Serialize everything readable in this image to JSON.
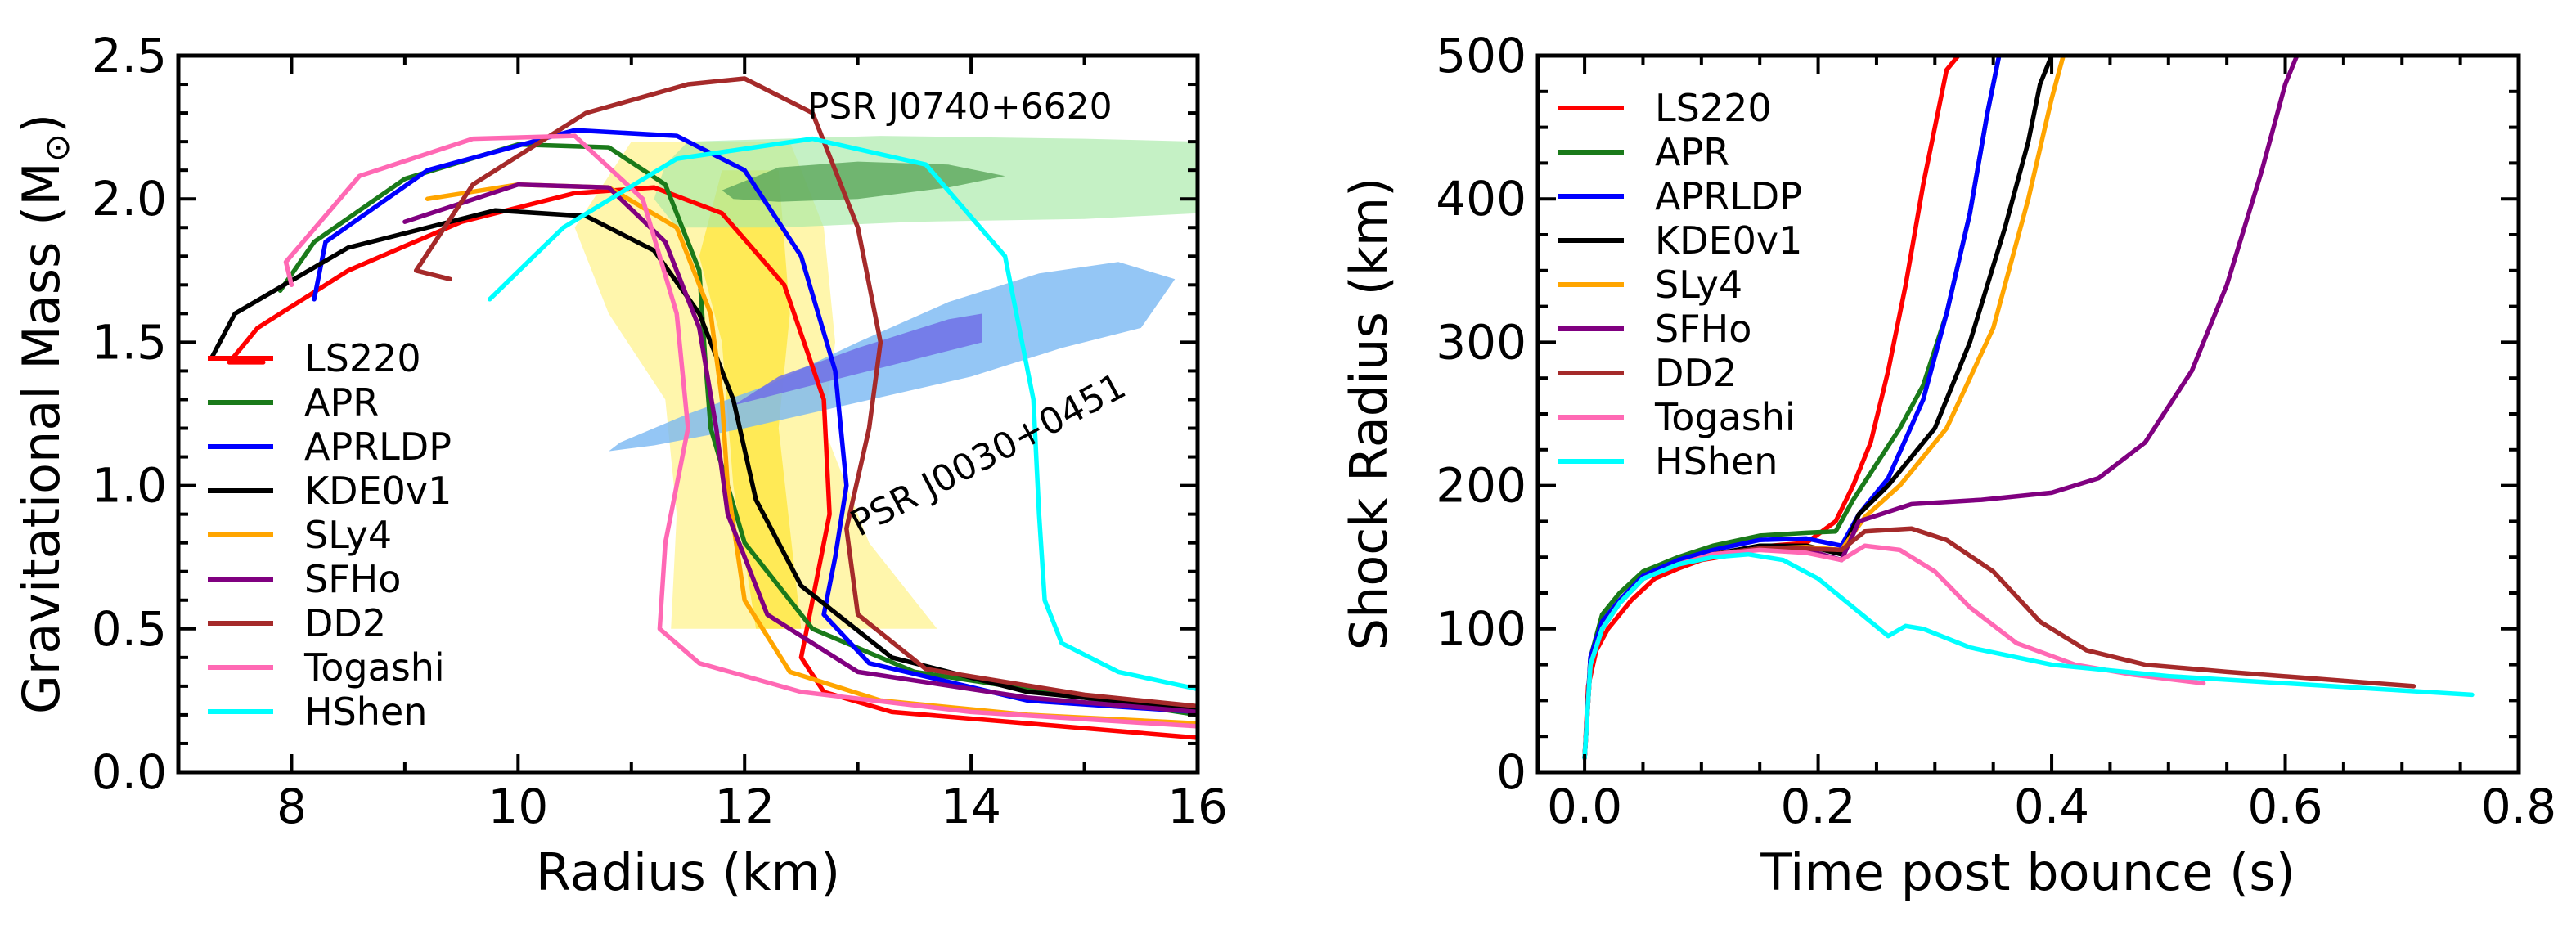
{
  "chart_data": [
    {
      "type": "line",
      "ylabel_main": "Gravitational Mass (M",
      "ylabel_sub": "⊙",
      "ylabel_close": ")",
      "xlabel": "Radius (km)",
      "xlim": [
        7,
        16
      ],
      "ylim": [
        0,
        2.5
      ],
      "xticks": [
        "8",
        "10",
        "12",
        "14",
        "16"
      ],
      "yticks": [
        "0.0",
        "0.5",
        "1.0",
        "1.5",
        "2.0",
        "2.5"
      ],
      "legend_position": "lower-left",
      "annotations": [
        {
          "text": "PSR J0740+6620",
          "x": 13.9,
          "y": 2.28,
          "angle": 0
        },
        {
          "text": "PSR J0030+0451",
          "x": 14.2,
          "y": 1.07,
          "angle": -28
        }
      ],
      "regions": [
        {
          "name": "yellow-band-outer",
          "color": "#fff59d",
          "opacity": 0.85,
          "points": [
            [
              11.0,
              2.2
            ],
            [
              12.4,
              2.2
            ],
            [
              12.7,
              1.9
            ],
            [
              12.8,
              1.5
            ],
            [
              12.7,
              1.2
            ],
            [
              13.1,
              0.8
            ],
            [
              13.7,
              0.5
            ],
            [
              11.35,
              0.5
            ],
            [
              11.4,
              0.9
            ],
            [
              11.3,
              1.3
            ],
            [
              10.8,
              1.6
            ],
            [
              10.5,
              1.9
            ]
          ]
        },
        {
          "name": "yellow-band-inner",
          "color": "#ffe94d",
          "opacity": 0.9,
          "points": [
            [
              11.8,
              2.1
            ],
            [
              12.3,
              2.1
            ],
            [
              12.4,
              1.6
            ],
            [
              12.3,
              1.2
            ],
            [
              12.5,
              0.5
            ],
            [
              12.1,
              0.5
            ],
            [
              11.9,
              1.0
            ],
            [
              11.8,
              1.5
            ],
            [
              11.6,
              1.8
            ]
          ]
        },
        {
          "name": "psr-j0740-outer",
          "color": "#a6e9a6",
          "opacity": 0.65,
          "points": [
            [
              11.5,
              2.2
            ],
            [
              13.2,
              2.22
            ],
            [
              15.0,
              2.21
            ],
            [
              16.0,
              2.2
            ],
            [
              16.0,
              1.95
            ],
            [
              15.0,
              1.93
            ],
            [
              13.5,
              1.92
            ],
            [
              12.3,
              1.9
            ],
            [
              11.4,
              1.9
            ],
            [
              11.2,
              2.0
            ],
            [
              11.3,
              2.12
            ]
          ]
        },
        {
          "name": "psr-j0740-inner",
          "color": "#5aa65a",
          "opacity": 0.8,
          "points": [
            [
              11.8,
              2.03
            ],
            [
              12.3,
              2.11
            ],
            [
              13.0,
              2.13
            ],
            [
              13.8,
              2.12
            ],
            [
              14.3,
              2.08
            ],
            [
              13.8,
              2.04
            ],
            [
              13.0,
              2.0
            ],
            [
              12.3,
              1.99
            ],
            [
              11.9,
              2.0
            ]
          ]
        },
        {
          "name": "psr-j0030-outer",
          "color": "#79b8f3",
          "opacity": 0.8,
          "points": [
            [
              10.8,
              1.12
            ],
            [
              11.2,
              1.14
            ],
            [
              12.0,
              1.2
            ],
            [
              13.0,
              1.29
            ],
            [
              14.0,
              1.38
            ],
            [
              14.8,
              1.48
            ],
            [
              15.5,
              1.55
            ],
            [
              15.8,
              1.72
            ],
            [
              15.3,
              1.78
            ],
            [
              14.6,
              1.74
            ],
            [
              13.8,
              1.64
            ],
            [
              13.0,
              1.5
            ],
            [
              12.2,
              1.35
            ],
            [
              11.5,
              1.25
            ],
            [
              10.9,
              1.15
            ]
          ]
        },
        {
          "name": "psr-j0030-inner",
          "color": "#7070e6",
          "opacity": 0.85,
          "points": [
            [
              11.9,
              1.28
            ],
            [
              12.8,
              1.37
            ],
            [
              13.6,
              1.45
            ],
            [
              14.1,
              1.5
            ],
            [
              14.1,
              1.6
            ],
            [
              13.8,
              1.58
            ],
            [
              13.0,
              1.48
            ],
            [
              12.3,
              1.38
            ]
          ]
        }
      ],
      "series": [
        {
          "name": "LS220",
          "color": "#ff0000",
          "x": [
            7.75,
            7.45,
            7.7,
            8.5,
            9.5,
            10.5,
            11.2,
            11.8,
            12.35,
            12.7,
            12.75,
            12.6,
            12.5,
            12.7,
            13.3,
            14.5,
            16.0
          ],
          "y": [
            1.43,
            1.43,
            1.55,
            1.75,
            1.92,
            2.02,
            2.04,
            1.95,
            1.7,
            1.3,
            0.9,
            0.6,
            0.4,
            0.28,
            0.21,
            0.17,
            0.12
          ]
        },
        {
          "name": "APR",
          "color": "#1a7a1a",
          "x": [
            7.9,
            8.2,
            9.0,
            10.0,
            10.8,
            11.3,
            11.6,
            11.65,
            11.7,
            12.0,
            12.6,
            13.5,
            16.0
          ],
          "y": [
            1.68,
            1.85,
            2.07,
            2.19,
            2.18,
            2.05,
            1.75,
            1.45,
            1.2,
            0.8,
            0.5,
            0.35,
            0.2
          ]
        },
        {
          "name": "APRLDP",
          "color": "#0000ff",
          "x": [
            8.2,
            8.3,
            9.2,
            10.5,
            11.4,
            12.0,
            12.5,
            12.8,
            12.9,
            12.8,
            12.7,
            13.1,
            14.5,
            16.0
          ],
          "y": [
            1.65,
            1.85,
            2.1,
            2.24,
            2.22,
            2.1,
            1.8,
            1.4,
            1.0,
            0.75,
            0.55,
            0.38,
            0.25,
            0.21
          ]
        },
        {
          "name": "KDE0v1",
          "color": "#000000",
          "x": [
            7.3,
            7.5,
            8.5,
            9.8,
            10.6,
            11.2,
            11.6,
            11.9,
            12.1,
            12.5,
            13.3,
            14.5,
            16.0
          ],
          "y": [
            1.45,
            1.6,
            1.83,
            1.96,
            1.94,
            1.82,
            1.6,
            1.3,
            0.95,
            0.65,
            0.4,
            0.28,
            0.22
          ]
        },
        {
          "name": "SLy4",
          "color": "#ffa500",
          "x": [
            9.2,
            10.0,
            10.8,
            11.4,
            11.7,
            11.8,
            11.85,
            12.0,
            12.4,
            13.2,
            14.5,
            16.0
          ],
          "y": [
            2.0,
            2.05,
            2.04,
            1.9,
            1.6,
            1.3,
            1.0,
            0.6,
            0.35,
            0.25,
            0.2,
            0.17
          ]
        },
        {
          "name": "SFHo",
          "color": "#800080",
          "x": [
            9.0,
            10.0,
            10.8,
            11.3,
            11.6,
            11.75,
            11.85,
            12.2,
            13.0,
            14.5,
            16.0
          ],
          "y": [
            1.92,
            2.05,
            2.04,
            1.85,
            1.55,
            1.2,
            0.9,
            0.55,
            0.35,
            0.26,
            0.21
          ]
        },
        {
          "name": "DD2",
          "color": "#a52a2a",
          "x": [
            9.4,
            9.1,
            9.6,
            10.6,
            11.5,
            12.0,
            12.6,
            13.0,
            13.2,
            13.1,
            12.9,
            13.0,
            13.6,
            15.0,
            16.0
          ],
          "y": [
            1.72,
            1.75,
            2.05,
            2.3,
            2.4,
            2.42,
            2.3,
            1.9,
            1.5,
            1.2,
            0.85,
            0.55,
            0.36,
            0.27,
            0.23
          ]
        },
        {
          "name": "Togashi",
          "color": "#ff69b4",
          "x": [
            8.0,
            7.95,
            8.6,
            9.6,
            10.5,
            11.1,
            11.4,
            11.5,
            11.3,
            11.25,
            11.6,
            12.5,
            14.0,
            16.0
          ],
          "y": [
            1.7,
            1.78,
            2.08,
            2.21,
            2.22,
            2.0,
            1.6,
            1.2,
            0.8,
            0.5,
            0.38,
            0.28,
            0.21,
            0.16
          ]
        },
        {
          "name": "HShen",
          "color": "#00ffff",
          "x": [
            9.75,
            10.4,
            11.4,
            12.6,
            13.6,
            14.3,
            14.55,
            14.6,
            14.65,
            14.8,
            15.3,
            16.0
          ],
          "y": [
            1.65,
            1.9,
            2.14,
            2.21,
            2.12,
            1.8,
            1.3,
            0.9,
            0.6,
            0.45,
            0.35,
            0.29
          ]
        }
      ]
    },
    {
      "type": "line",
      "ylabel": "Shock Radius (km)",
      "xlabel": "Time post bounce (s)",
      "xlim": [
        -0.04,
        0.8
      ],
      "ylim": [
        0,
        500
      ],
      "xticks": [
        "0.0",
        "0.2",
        "0.4",
        "0.6",
        "0.8"
      ],
      "yticks": [
        "0",
        "100",
        "200",
        "300",
        "400",
        "500"
      ],
      "legend_position": "upper-left",
      "series": [
        {
          "name": "LS220",
          "color": "#ff0000",
          "x": [
            0,
            0.003,
            0.01,
            0.02,
            0.04,
            0.06,
            0.08,
            0.1,
            0.13,
            0.16,
            0.19,
            0.215,
            0.23,
            0.245,
            0.26,
            0.275,
            0.29,
            0.3,
            0.31,
            0.32
          ],
          "y": [
            10,
            60,
            85,
            100,
            120,
            135,
            142,
            148,
            152,
            158,
            160,
            175,
            200,
            230,
            280,
            340,
            410,
            450,
            490,
            500
          ]
        },
        {
          "name": "APR",
          "color": "#1a7a1a",
          "x": [
            0,
            0.005,
            0.015,
            0.03,
            0.05,
            0.08,
            0.11,
            0.15,
            0.19,
            0.215,
            0.23,
            0.25,
            0.27,
            0.29,
            0.31,
            0.33,
            0.345,
            0.355
          ],
          "y": [
            10,
            80,
            110,
            125,
            140,
            150,
            158,
            165,
            167,
            168,
            190,
            215,
            240,
            270,
            320,
            390,
            460,
            500
          ]
        },
        {
          "name": "APRLDP",
          "color": "#0000ff",
          "x": [
            0,
            0.005,
            0.015,
            0.03,
            0.05,
            0.08,
            0.11,
            0.15,
            0.19,
            0.22,
            0.235,
            0.26,
            0.29,
            0.31,
            0.33,
            0.345,
            0.355
          ],
          "y": [
            10,
            80,
            105,
            120,
            137,
            148,
            155,
            162,
            163,
            158,
            180,
            205,
            260,
            320,
            390,
            460,
            500
          ]
        },
        {
          "name": "KDE0v1",
          "color": "#000000",
          "x": [
            0,
            0.005,
            0.015,
            0.03,
            0.05,
            0.08,
            0.11,
            0.15,
            0.19,
            0.22,
            0.235,
            0.26,
            0.3,
            0.33,
            0.36,
            0.38,
            0.39,
            0.4
          ],
          "y": [
            10,
            75,
            100,
            118,
            135,
            145,
            152,
            158,
            158,
            152,
            180,
            200,
            240,
            300,
            380,
            440,
            480,
            500
          ]
        },
        {
          "name": "SLy4",
          "color": "#ffa500",
          "x": [
            0,
            0.005,
            0.015,
            0.03,
            0.05,
            0.08,
            0.11,
            0.15,
            0.19,
            0.22,
            0.24,
            0.27,
            0.31,
            0.35,
            0.38,
            0.4,
            0.41
          ],
          "y": [
            10,
            75,
            100,
            118,
            135,
            145,
            152,
            156,
            157,
            155,
            178,
            200,
            240,
            310,
            400,
            470,
            500
          ]
        },
        {
          "name": "SFHo",
          "color": "#800080",
          "x": [
            0,
            0.005,
            0.015,
            0.03,
            0.05,
            0.08,
            0.11,
            0.15,
            0.19,
            0.22,
            0.235,
            0.28,
            0.34,
            0.4,
            0.44,
            0.48,
            0.52,
            0.55,
            0.58,
            0.6,
            0.61
          ],
          "y": [
            10,
            75,
            100,
            118,
            135,
            145,
            152,
            156,
            155,
            148,
            175,
            187,
            190,
            195,
            205,
            230,
            280,
            340,
            420,
            480,
            500
          ]
        },
        {
          "name": "DD2",
          "color": "#a52a2a",
          "x": [
            0,
            0.005,
            0.015,
            0.03,
            0.05,
            0.08,
            0.11,
            0.15,
            0.19,
            0.22,
            0.24,
            0.28,
            0.31,
            0.35,
            0.39,
            0.43,
            0.48,
            0.55,
            0.63,
            0.71
          ],
          "y": [
            10,
            75,
            100,
            118,
            135,
            145,
            152,
            156,
            156,
            155,
            168,
            170,
            162,
            140,
            105,
            85,
            75,
            70,
            65,
            60
          ]
        },
        {
          "name": "Togashi",
          "color": "#ff69b4",
          "x": [
            0,
            0.005,
            0.015,
            0.03,
            0.05,
            0.08,
            0.11,
            0.15,
            0.19,
            0.22,
            0.24,
            0.27,
            0.3,
            0.33,
            0.37,
            0.42,
            0.47,
            0.53
          ],
          "y": [
            10,
            75,
            100,
            118,
            135,
            145,
            152,
            155,
            153,
            148,
            158,
            155,
            140,
            115,
            90,
            75,
            68,
            62
          ]
        },
        {
          "name": "HShen",
          "color": "#00ffff",
          "x": [
            0,
            0.005,
            0.015,
            0.03,
            0.05,
            0.08,
            0.11,
            0.14,
            0.17,
            0.2,
            0.23,
            0.26,
            0.275,
            0.29,
            0.33,
            0.4,
            0.5,
            0.6,
            0.7,
            0.76
          ],
          "y": [
            10,
            75,
            100,
            118,
            135,
            145,
            150,
            152,
            148,
            135,
            115,
            95,
            102,
            100,
            87,
            75,
            67,
            62,
            57,
            54
          ]
        }
      ]
    }
  ]
}
